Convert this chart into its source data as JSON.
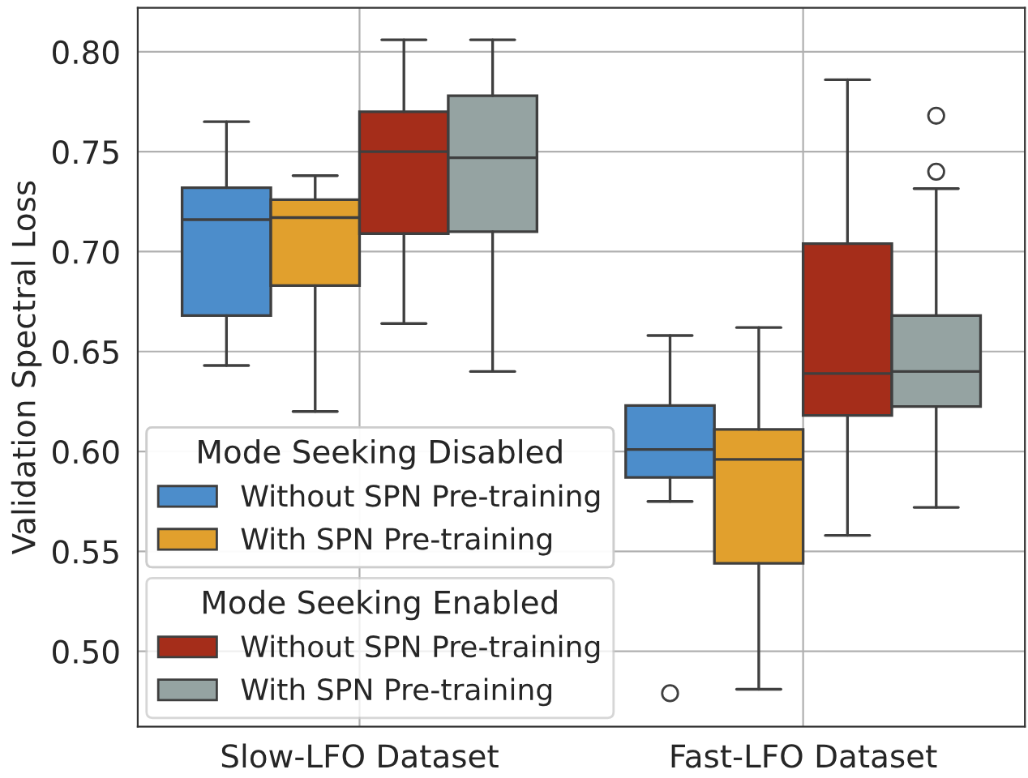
{
  "chart_data": {
    "type": "box",
    "ylabel": "Validation Spectral Loss",
    "categories": [
      "Slow-LFO Dataset",
      "Fast-LFO Dataset"
    ],
    "legend_title": [
      "Mode Seeking Disabled",
      "Mode Seeking Enabled"
    ],
    "series": [
      {
        "name": "Without SPN Pre-training",
        "color": "#4c8dcb",
        "boxes": [
          {
            "low": 0.643,
            "q1": 0.668,
            "median": 0.716,
            "q3": 0.732,
            "high": 0.765
          },
          {
            "low": 0.575,
            "q1": 0.587,
            "median": 0.601,
            "q3": 0.623,
            "high": 0.658,
            "outliers": [
              0.479
            ]
          }
        ]
      },
      {
        "name": "With SPN Pre-training",
        "color": "#e1a02d",
        "boxes": [
          {
            "low": 0.62,
            "q1": 0.683,
            "median": 0.717,
            "q3": 0.726,
            "high": 0.738
          },
          {
            "low": 0.481,
            "q1": 0.544,
            "median": 0.596,
            "q3": 0.611,
            "high": 0.662
          }
        ]
      },
      {
        "name": "Without SPN Pre-training",
        "color": "#a52d1a",
        "boxes": [
          {
            "low": 0.664,
            "q1": 0.709,
            "median": 0.75,
            "q3": 0.77,
            "high": 0.806
          },
          {
            "low": 0.558,
            "q1": 0.618,
            "median": 0.639,
            "q3": 0.704,
            "high": 0.786
          }
        ]
      },
      {
        "name": "With SPN Pre-training",
        "color": "#95a3a2",
        "boxes": [
          {
            "low": 0.64,
            "q1": 0.71,
            "median": 0.747,
            "q3": 0.778,
            "high": 0.806
          },
          {
            "low": 0.572,
            "q1": 0.6225,
            "median": 0.64,
            "q3": 0.668,
            "high": 0.7315,
            "outliers": [
              0.768,
              0.74
            ]
          }
        ]
      }
    ],
    "ylim": [
      0.4623,
      0.822
    ],
    "yticks": [
      {
        "value": 0.5,
        "label": "0.50"
      },
      {
        "value": 0.55,
        "label": "0.55"
      },
      {
        "value": 0.6,
        "label": "0.60"
      },
      {
        "value": 0.65,
        "label": "0.65"
      },
      {
        "value": 0.7,
        "label": "0.70"
      },
      {
        "value": 0.75,
        "label": "0.75"
      },
      {
        "value": 0.8,
        "label": "0.80"
      }
    ],
    "grid": true,
    "legend": "bottom left"
  }
}
